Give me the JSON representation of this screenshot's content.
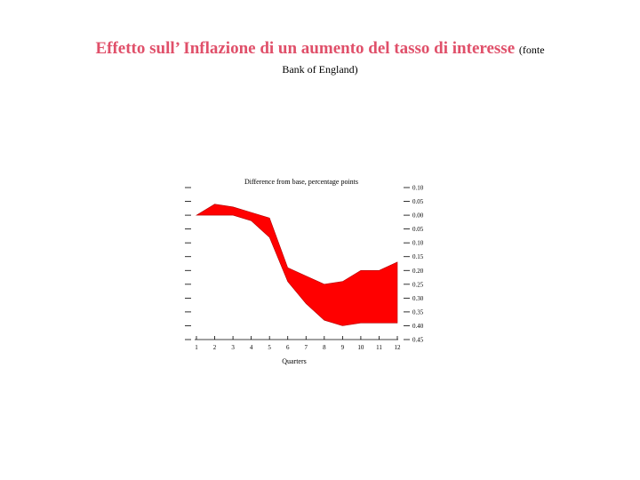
{
  "title": "Effetto sull’ Inflazione di un aumento del tasso di interesse",
  "source_prefix": "(fonte",
  "source_suffix": "Bank of England)",
  "chart_data": {
    "type": "area",
    "title": "Difference from base, percentage points",
    "xlabel": "Quarters",
    "ylabel": "",
    "x": [
      1,
      2,
      3,
      4,
      5,
      6,
      7,
      8,
      9,
      10,
      11,
      12
    ],
    "xlim": [
      1,
      12
    ],
    "ylim": [
      -0.45,
      0.1
    ],
    "yticks": [
      0.1,
      0.05,
      0.0,
      -0.05,
      -0.1,
      -0.15,
      -0.2,
      -0.25,
      -0.3,
      -0.35,
      -0.4,
      -0.45
    ],
    "ytick_labels": [
      "0.10",
      "0.05",
      "0.00",
      "0.05",
      "0.10",
      "0.15",
      "0.20",
      "0.25",
      "0.30",
      "0.35",
      "0.40",
      "0.45"
    ],
    "series": [
      {
        "role": "upper",
        "values": [
          0.0,
          0.04,
          0.03,
          0.01,
          -0.01,
          -0.19,
          -0.22,
          -0.25,
          -0.24,
          -0.2,
          -0.2,
          -0.17
        ]
      },
      {
        "role": "lower",
        "values": [
          0.0,
          0.0,
          0.0,
          -0.02,
          -0.08,
          -0.24,
          -0.32,
          -0.38,
          -0.4,
          -0.39,
          -0.39,
          -0.39
        ]
      }
    ],
    "band_color": "#ff0000",
    "grid": false,
    "legend": "none"
  }
}
